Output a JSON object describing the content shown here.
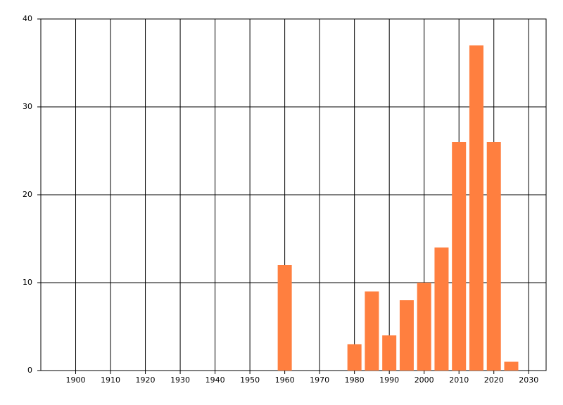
{
  "chart_data": {
    "type": "bar",
    "x": [
      1960,
      1980,
      1985,
      1990,
      1995,
      2000,
      2005,
      2010,
      2015,
      2020,
      2025
    ],
    "values": [
      12,
      3,
      9,
      4,
      8,
      10,
      14,
      26,
      37,
      26,
      1
    ],
    "color": "#ff7f3f",
    "xlim": [
      1890,
      2035
    ],
    "xticks": [
      1900,
      1910,
      1920,
      1930,
      1940,
      1950,
      1960,
      1970,
      1980,
      1990,
      2000,
      2010,
      2020,
      2030
    ],
    "ylim": [
      0,
      40
    ],
    "yticks": [
      0,
      10,
      20,
      30,
      40
    ],
    "grid": true
  }
}
